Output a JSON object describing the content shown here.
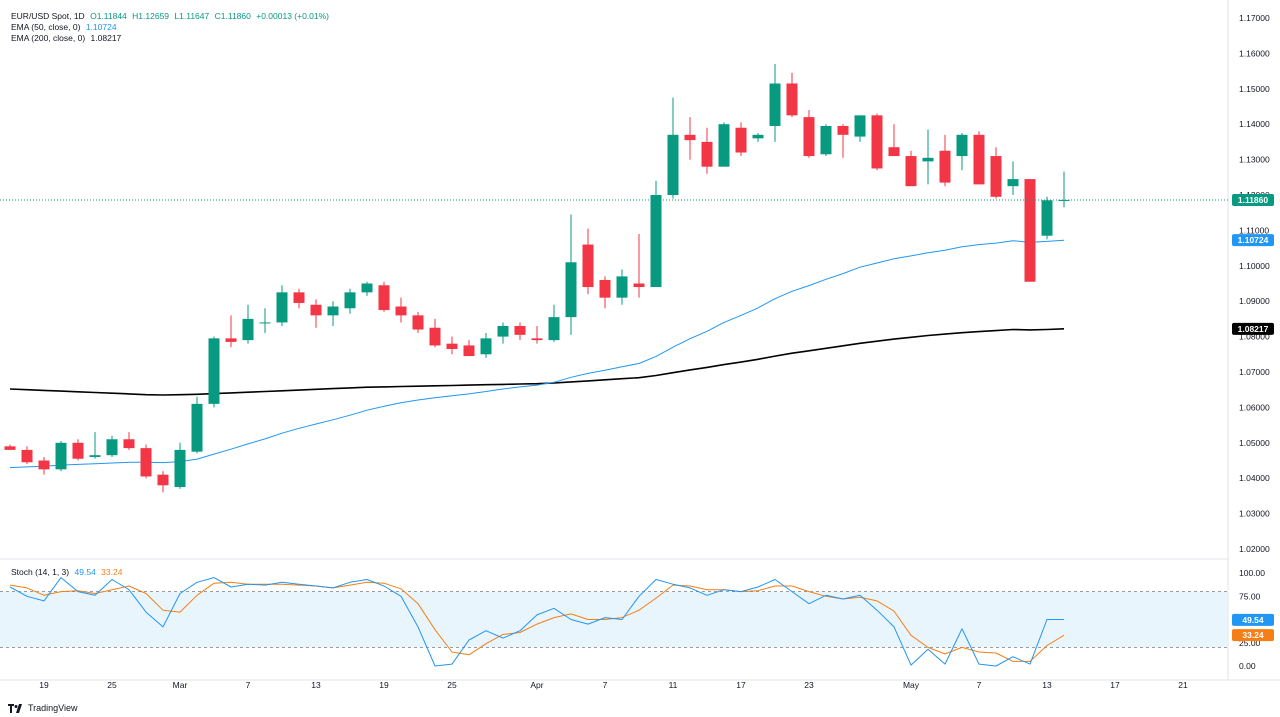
{
  "legend": {
    "symbol": "EUR/USD Spot, 1D",
    "open": "O1.11844",
    "high": "H1.12659",
    "low": "L1.11647",
    "close": "C1.11860",
    "change": "+0.00013 (+0.01%)",
    "ema50_label": "EMA (50, close, 0)",
    "ema50_value": "1.10724",
    "ema200_label": "EMA (200, close, 0)",
    "ema200_value": "1.08217",
    "stoch_label": "Stoch (14, 1, 3)",
    "stoch_k_value": "49.54",
    "stoch_d_value": "33.24"
  },
  "brand": "TradingView",
  "colors": {
    "up": "#089981",
    "down": "#f23645",
    "ema50": "#2196f3",
    "ema200": "#000000",
    "stoch_k": "#2196f3",
    "stoch_d": "#f57f17",
    "stoch_band": "#e3f2fd"
  },
  "chart_data": [
    {
      "type": "candlestick",
      "title": "EUR/USD Spot, 1D",
      "price_ticks": [
        "1.17000",
        "1.16000",
        "1.15000",
        "1.14000",
        "1.13000",
        "1.12000",
        "1.11000",
        "1.10000",
        "1.09000",
        "1.08000",
        "1.07000",
        "1.06000",
        "1.05000",
        "1.04000",
        "1.03000",
        "1.02000"
      ],
      "ylim": [
        1.0155,
        1.1725
      ],
      "x_ticks": [
        {
          "i": 2,
          "label": "19"
        },
        {
          "i": 6,
          "label": "25"
        },
        {
          "i": 10,
          "label": "Mar"
        },
        {
          "i": 14,
          "label": "7"
        },
        {
          "i": 18,
          "label": "13"
        },
        {
          "i": 22,
          "label": "19"
        },
        {
          "i": 26,
          "label": "25"
        },
        {
          "i": 31,
          "label": "Apr"
        },
        {
          "i": 35,
          "label": "7"
        },
        {
          "i": 39,
          "label": "11"
        },
        {
          "i": 43,
          "label": "17"
        },
        {
          "i": 47,
          "label": "23"
        },
        {
          "i": 53,
          "label": "May"
        },
        {
          "i": 57,
          "label": "7"
        },
        {
          "i": 61,
          "label": "13"
        },
        {
          "i": 65,
          "label": "17"
        },
        {
          "i": 69,
          "label": "21"
        }
      ],
      "candles": [
        {
          "o": 1.049,
          "h": 1.0495,
          "l": 1.048,
          "c": 1.048
        },
        {
          "o": 1.048,
          "h": 1.049,
          "l": 1.044,
          "c": 1.0445
        },
        {
          "o": 1.045,
          "h": 1.046,
          "l": 1.041,
          "c": 1.0425
        },
        {
          "o": 1.0425,
          "h": 1.0505,
          "l": 1.042,
          "c": 1.05
        },
        {
          "o": 1.05,
          "h": 1.051,
          "l": 1.045,
          "c": 1.0455
        },
        {
          "o": 1.046,
          "h": 1.053,
          "l": 1.0455,
          "c": 1.0465
        },
        {
          "o": 1.0465,
          "h": 1.052,
          "l": 1.046,
          "c": 1.051
        },
        {
          "o": 1.051,
          "h": 1.053,
          "l": 1.048,
          "c": 1.0485
        },
        {
          "o": 1.0485,
          "h": 1.0495,
          "l": 1.04,
          "c": 1.0405
        },
        {
          "o": 1.041,
          "h": 1.042,
          "l": 1.036,
          "c": 1.038
        },
        {
          "o": 1.0375,
          "h": 1.05,
          "l": 1.037,
          "c": 1.048
        },
        {
          "o": 1.0475,
          "h": 1.063,
          "l": 1.047,
          "c": 1.061
        },
        {
          "o": 1.061,
          "h": 1.08,
          "l": 1.06,
          "c": 1.0795
        },
        {
          "o": 1.0795,
          "h": 1.086,
          "l": 1.077,
          "c": 1.0785
        },
        {
          "o": 1.079,
          "h": 1.089,
          "l": 1.078,
          "c": 1.085
        },
        {
          "o": 1.084,
          "h": 1.088,
          "l": 1.081,
          "c": 1.084
        },
        {
          "o": 1.084,
          "h": 1.0945,
          "l": 1.083,
          "c": 1.0925
        },
        {
          "o": 1.0925,
          "h": 1.0935,
          "l": 1.088,
          "c": 1.0895
        },
        {
          "o": 1.089,
          "h": 1.0905,
          "l": 1.0825,
          "c": 1.086
        },
        {
          "o": 1.086,
          "h": 1.09,
          "l": 1.083,
          "c": 1.0885
        },
        {
          "o": 1.088,
          "h": 1.0935,
          "l": 1.0865,
          "c": 1.0925
        },
        {
          "o": 1.0925,
          "h": 1.0955,
          "l": 1.0915,
          "c": 1.095
        },
        {
          "o": 1.0945,
          "h": 1.0955,
          "l": 1.087,
          "c": 1.0875
        },
        {
          "o": 1.0885,
          "h": 1.091,
          "l": 1.084,
          "c": 1.086
        },
        {
          "o": 1.086,
          "h": 1.087,
          "l": 1.081,
          "c": 1.082
        },
        {
          "o": 1.0825,
          "h": 1.085,
          "l": 1.077,
          "c": 1.0775
        },
        {
          "o": 1.078,
          "h": 1.08,
          "l": 1.075,
          "c": 1.0765
        },
        {
          "o": 1.0775,
          "h": 1.079,
          "l": 1.0745,
          "c": 1.0745
        },
        {
          "o": 1.075,
          "h": 1.081,
          "l": 1.074,
          "c": 1.0795
        },
        {
          "o": 1.08,
          "h": 1.084,
          "l": 1.078,
          "c": 1.083
        },
        {
          "o": 1.083,
          "h": 1.084,
          "l": 1.079,
          "c": 1.0805
        },
        {
          "o": 1.0795,
          "h": 1.083,
          "l": 1.078,
          "c": 1.079
        },
        {
          "o": 1.079,
          "h": 1.089,
          "l": 1.0785,
          "c": 1.0855
        },
        {
          "o": 1.0855,
          "h": 1.1145,
          "l": 1.0805,
          "c": 1.101
        },
        {
          "o": 1.106,
          "h": 1.1105,
          "l": 1.092,
          "c": 1.094
        },
        {
          "o": 1.096,
          "h": 1.097,
          "l": 1.088,
          "c": 1.091
        },
        {
          "o": 1.091,
          "h": 1.099,
          "l": 1.089,
          "c": 1.097
        },
        {
          "o": 1.095,
          "h": 1.109,
          "l": 1.091,
          "c": 1.094
        },
        {
          "o": 1.094,
          "h": 1.124,
          "l": 1.094,
          "c": 1.12
        },
        {
          "o": 1.12,
          "h": 1.1475,
          "l": 1.119,
          "c": 1.137
        },
        {
          "o": 1.137,
          "h": 1.142,
          "l": 1.13,
          "c": 1.1355
        },
        {
          "o": 1.135,
          "h": 1.139,
          "l": 1.126,
          "c": 1.128
        },
        {
          "o": 1.128,
          "h": 1.1405,
          "l": 1.128,
          "c": 1.14
        },
        {
          "o": 1.139,
          "h": 1.1405,
          "l": 1.131,
          "c": 1.132
        },
        {
          "o": 1.136,
          "h": 1.1375,
          "l": 1.135,
          "c": 1.137
        },
        {
          "o": 1.1395,
          "h": 1.157,
          "l": 1.135,
          "c": 1.1515
        },
        {
          "o": 1.1515,
          "h": 1.1545,
          "l": 1.142,
          "c": 1.1425
        },
        {
          "o": 1.142,
          "h": 1.144,
          "l": 1.1305,
          "c": 1.131
        },
        {
          "o": 1.1315,
          "h": 1.14,
          "l": 1.131,
          "c": 1.1395
        },
        {
          "o": 1.1395,
          "h": 1.14,
          "l": 1.1305,
          "c": 1.137
        },
        {
          "o": 1.1365,
          "h": 1.1425,
          "l": 1.135,
          "c": 1.1425
        },
        {
          "o": 1.1425,
          "h": 1.143,
          "l": 1.127,
          "c": 1.1275
        },
        {
          "o": 1.1335,
          "h": 1.14,
          "l": 1.132,
          "c": 1.131
        },
        {
          "o": 1.131,
          "h": 1.1325,
          "l": 1.1225,
          "c": 1.1225
        },
        {
          "o": 1.1295,
          "h": 1.1385,
          "l": 1.123,
          "c": 1.1305
        },
        {
          "o": 1.1325,
          "h": 1.137,
          "l": 1.1225,
          "c": 1.1235
        },
        {
          "o": 1.131,
          "h": 1.1375,
          "l": 1.127,
          "c": 1.137
        },
        {
          "o": 1.137,
          "h": 1.138,
          "l": 1.123,
          "c": 1.123
        },
        {
          "o": 1.131,
          "h": 1.1335,
          "l": 1.119,
          "c": 1.1195
        },
        {
          "o": 1.1225,
          "h": 1.1295,
          "l": 1.12,
          "c": 1.1245
        },
        {
          "o": 1.1245,
          "h": 1.1245,
          "l": 1.0955,
          "c": 1.0955
        },
        {
          "o": 1.1085,
          "h": 1.1195,
          "l": 1.1075,
          "c": 1.1185
        },
        {
          "o": 1.1184,
          "h": 1.1266,
          "l": 1.1165,
          "c": 1.1186
        }
      ],
      "ema50": [
        1.043,
        1.0432,
        1.0434,
        1.0437,
        1.0439,
        1.0441,
        1.0443,
        1.0445,
        1.0445,
        1.0444,
        1.0447,
        1.0454,
        1.0468,
        1.0482,
        1.0497,
        1.0511,
        1.0527,
        1.0541,
        1.0553,
        1.0565,
        1.0578,
        1.0592,
        1.0603,
        1.0613,
        1.0621,
        1.0627,
        1.0633,
        1.0638,
        1.0645,
        1.0652,
        1.0658,
        1.0663,
        1.0671,
        1.0685,
        1.0696,
        1.0705,
        1.0715,
        1.0724,
        1.0744,
        1.077,
        1.0794,
        1.0815,
        1.084,
        1.086,
        1.0881,
        1.0907,
        1.0928,
        1.0944,
        1.0962,
        1.0978,
        1.0996,
        1.1008,
        1.102,
        1.1028,
        1.1037,
        1.1044,
        1.1054,
        1.106,
        1.1064,
        1.1071,
        1.1066,
        1.1069,
        1.1072
      ],
      "ema200": [
        1.0652,
        1.065,
        1.0648,
        1.0646,
        1.0644,
        1.0642,
        1.064,
        1.0638,
        1.0636,
        1.0635,
        1.0636,
        1.0637,
        1.0639,
        1.0641,
        1.0643,
        1.0645,
        1.0647,
        1.0649,
        1.0651,
        1.0653,
        1.0655,
        1.0657,
        1.0658,
        1.0659,
        1.066,
        1.0661,
        1.0662,
        1.0663,
        1.0664,
        1.0665,
        1.0666,
        1.0667,
        1.0669,
        1.0672,
        1.0675,
        1.0678,
        1.0681,
        1.0684,
        1.069,
        1.0698,
        1.0706,
        1.0713,
        1.0721,
        1.0728,
        1.0736,
        1.0745,
        1.0753,
        1.076,
        1.0767,
        1.0774,
        1.0781,
        1.0787,
        1.0793,
        1.0798,
        1.0803,
        1.0807,
        1.0811,
        1.0814,
        1.0817,
        1.082,
        1.0819,
        1.082,
        1.0822
      ]
    },
    {
      "type": "line",
      "title": "Stoch (14, 1, 3)",
      "yticks": [
        "100.00",
        "75.00",
        "25.00",
        "0.00"
      ],
      "ylim": [
        -5,
        105
      ],
      "band": [
        20,
        80
      ],
      "series": [
        {
          "name": "49.54",
          "values": [
            85,
            75,
            70,
            95,
            80,
            76,
            93,
            82,
            58,
            42,
            78,
            90,
            95,
            85,
            88,
            87,
            90,
            88,
            86,
            84,
            90,
            93,
            86,
            75,
            42,
            0,
            2,
            28,
            38,
            30,
            38,
            55,
            62,
            50,
            45,
            52,
            50,
            75,
            93,
            88,
            84,
            76,
            82,
            80,
            85,
            93,
            80,
            67,
            76,
            72,
            76,
            60,
            42,
            1,
            18,
            2,
            40,
            2,
            0,
            10,
            2,
            50,
            50
          ]
        },
        {
          "name": "33.24",
          "values": [
            87,
            84,
            76,
            80,
            81,
            78,
            82,
            86,
            78,
            60,
            58,
            76,
            89,
            90,
            88,
            88,
            88,
            87,
            86,
            84,
            87,
            90,
            89,
            83,
            67,
            39,
            15,
            12,
            24,
            34,
            36,
            45,
            52,
            56,
            50,
            50,
            52,
            60,
            73,
            87,
            86,
            82,
            82,
            80,
            81,
            86,
            86,
            80,
            75,
            72,
            74,
            70,
            59,
            33,
            20,
            13,
            20,
            15,
            14,
            5,
            5,
            22,
            33
          ]
        }
      ]
    }
  ]
}
